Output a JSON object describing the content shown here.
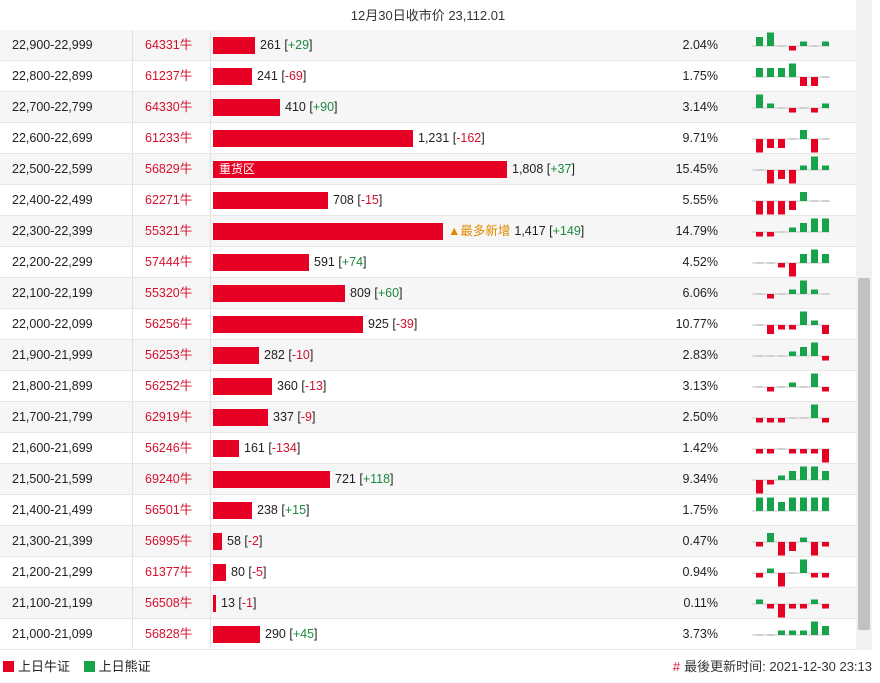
{
  "header": {
    "title": "12月30日收市价 23,112.01"
  },
  "colors": {
    "bull": "#e60023",
    "bear": "#16a34a"
  },
  "rows": [
    {
      "range": "22,900-22,999",
      "code": "64331牛",
      "count": 261,
      "count_text": "261",
      "change": "+29",
      "pct": "2.04%",
      "tag": "",
      "spark": [
        2,
        3,
        0,
        -1,
        1,
        0,
        1
      ]
    },
    {
      "range": "22,800-22,899",
      "code": "61237牛",
      "count": 241,
      "count_text": "241",
      "change": "-69",
      "pct": "1.75%",
      "tag": "",
      "spark": [
        2,
        2,
        2,
        3,
        -2,
        -2,
        0
      ]
    },
    {
      "range": "22,700-22,799",
      "code": "64330牛",
      "count": 410,
      "count_text": "410",
      "change": "+90",
      "pct": "3.14%",
      "tag": "",
      "spark": [
        3,
        1,
        0,
        -1,
        0,
        -1,
        1
      ]
    },
    {
      "range": "22,600-22,699",
      "code": "61233牛",
      "count": 1231,
      "count_text": "1,231",
      "change": "-162",
      "pct": "9.71%",
      "tag": "",
      "spark": [
        -3,
        -2,
        -2,
        0,
        2,
        -3,
        0
      ]
    },
    {
      "range": "22,500-22,599",
      "code": "56829牛",
      "count": 1808,
      "count_text": "1,808",
      "change": "+37",
      "pct": "15.45%",
      "tag": "重货区",
      "spark": [
        0,
        -3,
        -2,
        -3,
        1,
        3,
        1
      ]
    },
    {
      "range": "22,400-22,499",
      "code": "62271牛",
      "count": 708,
      "count_text": "708",
      "change": "-15",
      "pct": "5.55%",
      "tag": "",
      "spark": [
        -3,
        -3,
        -3,
        -2,
        2,
        0,
        0
      ]
    },
    {
      "range": "22,300-22,399",
      "code": "55321牛",
      "count": 1417,
      "count_text": "1,417",
      "change": "+149",
      "pct": "14.79%",
      "tag": "",
      "new_label": "▲最多新增",
      "spark": [
        -1,
        -1,
        0,
        1,
        2,
        3,
        3
      ]
    },
    {
      "range": "22,200-22,299",
      "code": "57444牛",
      "count": 591,
      "count_text": "591",
      "change": "+74",
      "pct": "4.52%",
      "tag": "",
      "spark": [
        0,
        0,
        -1,
        -3,
        2,
        3,
        2
      ]
    },
    {
      "range": "22,100-22,199",
      "code": "55320牛",
      "count": 809,
      "count_text": "809",
      "change": "+60",
      "pct": "6.06%",
      "tag": "",
      "spark": [
        0,
        -1,
        0,
        1,
        3,
        1,
        0
      ]
    },
    {
      "range": "22,000-22,099",
      "code": "56256牛",
      "count": 925,
      "count_text": "925",
      "change": "-39",
      "pct": "10.77%",
      "tag": "",
      "spark": [
        0,
        -2,
        -1,
        -1,
        3,
        1,
        -2
      ]
    },
    {
      "range": "21,900-21,999",
      "code": "56253牛",
      "count": 282,
      "count_text": "282",
      "change": "-10",
      "pct": "2.83%",
      "tag": "",
      "spark": [
        0,
        0,
        0,
        1,
        2,
        3,
        -1
      ]
    },
    {
      "range": "21,800-21,899",
      "code": "56252牛",
      "count": 360,
      "count_text": "360",
      "change": "-13",
      "pct": "3.13%",
      "tag": "",
      "spark": [
        0,
        -1,
        0,
        1,
        0,
        3,
        -1
      ]
    },
    {
      "range": "21,700-21,799",
      "code": "62919牛",
      "count": 337,
      "count_text": "337",
      "change": "-9",
      "pct": "2.50%",
      "tag": "",
      "spark": [
        -1,
        -1,
        -1,
        0,
        0,
        3,
        -1
      ]
    },
    {
      "range": "21,600-21,699",
      "code": "56246牛",
      "count": 161,
      "count_text": "161",
      "change": "-134",
      "pct": "1.42%",
      "tag": "",
      "spark": [
        -1,
        -1,
        0,
        -1,
        -1,
        -1,
        -3
      ]
    },
    {
      "range": "21,500-21,599",
      "code": "69240牛",
      "count": 721,
      "count_text": "721",
      "change": "+118",
      "pct": "9.34%",
      "tag": "",
      "spark": [
        -3,
        -1,
        1,
        2,
        3,
        3,
        2
      ]
    },
    {
      "range": "21,400-21,499",
      "code": "56501牛",
      "count": 238,
      "count_text": "238",
      "change": "+15",
      "pct": "1.75%",
      "tag": "",
      "spark": [
        3,
        3,
        2,
        3,
        3,
        3,
        3
      ]
    },
    {
      "range": "21,300-21,399",
      "code": "56995牛",
      "count": 58,
      "count_text": "58",
      "change": "-2",
      "pct": "0.47%",
      "tag": "",
      "spark": [
        -1,
        2,
        -3,
        -2,
        1,
        -3,
        -1
      ]
    },
    {
      "range": "21,200-21,299",
      "code": "61377牛",
      "count": 80,
      "count_text": "80",
      "change": "-5",
      "pct": "0.94%",
      "tag": "",
      "spark": [
        -1,
        1,
        -3,
        0,
        3,
        -1,
        -1
      ]
    },
    {
      "range": "21,100-21,199",
      "code": "56508牛",
      "count": 13,
      "count_text": "13",
      "change": "-1",
      "pct": "0.11%",
      "tag": "",
      "spark": [
        1,
        -1,
        -3,
        -1,
        -1,
        1,
        -1
      ]
    },
    {
      "range": "21,000-21,099",
      "code": "56828牛",
      "count": 290,
      "count_text": "290",
      "change": "+45",
      "pct": "3.73%",
      "tag": "",
      "spark": [
        0,
        0,
        1,
        1,
        1,
        3,
        2
      ]
    }
  ],
  "legend": {
    "bull_label": "上日牛证",
    "bear_label": "上日熊证"
  },
  "updated": {
    "hash": "#",
    "label": "最後更新时间: 2021-12-30 23:13"
  }
}
